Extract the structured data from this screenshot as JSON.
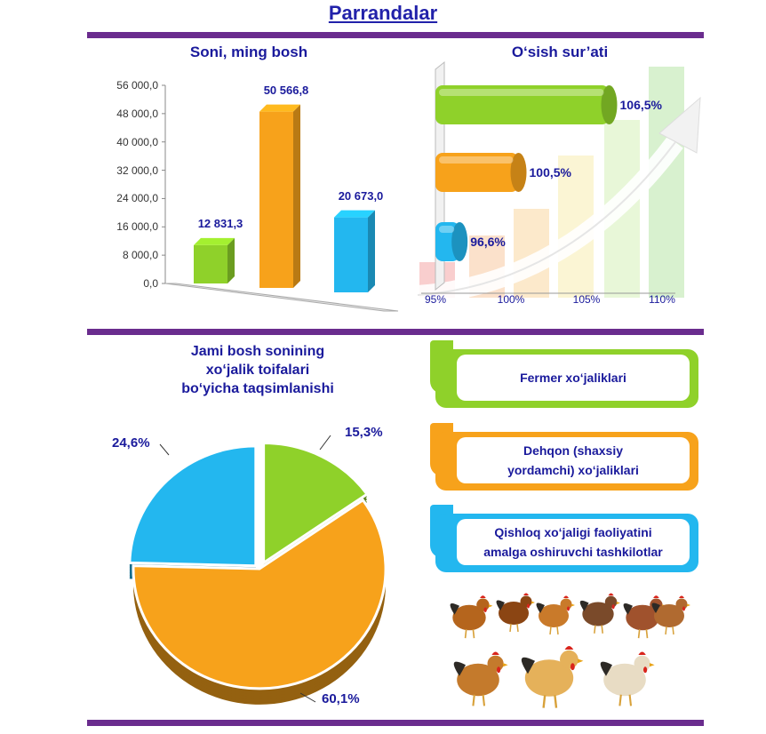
{
  "page_title": "Parrandalar",
  "chart_data": [
    {
      "type": "bar",
      "title": "Soni, ming bosh",
      "categories": [
        "Fermer xo‘jaliklari",
        "Dehqon (shaxsiy yordamchi) xo‘jaliklari",
        "Qishloq xo‘jaligi faoliyatini amalga oshiruvchi tashkilotlar"
      ],
      "values": [
        12831.3,
        50566.8,
        20673.0
      ],
      "value_labels": [
        "12 831,3",
        "50 566,8",
        "20 673,0"
      ],
      "ylim": [
        0,
        56000
      ],
      "yticks": [
        "0,0",
        "8 000,0",
        "16 000,0",
        "24 000,0",
        "32 000,0",
        "40 000,0",
        "48 000,0",
        "56 000,0"
      ],
      "colors": [
        "#8fd12a",
        "#f7a21b",
        "#23b7ef"
      ]
    },
    {
      "type": "bar",
      "orientation": "horizontal",
      "title": "O‘sish sur’ati",
      "categories": [
        "Fermer xo‘jaliklari",
        "Dehqon (shaxsiy yordamchi) xo‘jaliklari",
        "Qishloq xo‘jaligi faoliyatini amalga oshiruvchi tashkilotlar"
      ],
      "values": [
        106.5,
        100.5,
        96.6
      ],
      "value_labels": [
        "106,5%",
        "100,5%",
        "96,6%"
      ],
      "xlim": [
        95,
        110
      ],
      "xticks": [
        "95%",
        "100%",
        "105%",
        "110%"
      ],
      "colors": [
        "#8fd12a",
        "#f7a21b",
        "#23b7ef"
      ]
    },
    {
      "type": "pie",
      "title": "Jami bosh sonining xo‘jalik toifalari bo‘yicha taqsimlanishi",
      "title_lines": [
        "Jami bosh sonining",
        "xo‘jalik toifalari",
        "bo‘yicha taqsimlanishi"
      ],
      "values": [
        15.3,
        60.1,
        24.6
      ],
      "value_labels": [
        "15,3%",
        "60,1%",
        "24,6%"
      ],
      "colors": [
        "#8fd12a",
        "#f7a21b",
        "#23b7ef"
      ]
    }
  ],
  "legend": {
    "items": [
      {
        "lines": [
          "Fermer xo‘jaliklari"
        ],
        "color": "#8fd12a"
      },
      {
        "lines": [
          "Dehqon (shaxsiy",
          "yordamchi) xo‘jaliklari"
        ],
        "color": "#f7a21b"
      },
      {
        "lines": [
          "Qishloq xo‘jaligi faoliyatini",
          "amalga oshiruvchi tashkilotlar"
        ],
        "color": "#23b7ef"
      }
    ]
  },
  "image_alt": "chickens-photo"
}
